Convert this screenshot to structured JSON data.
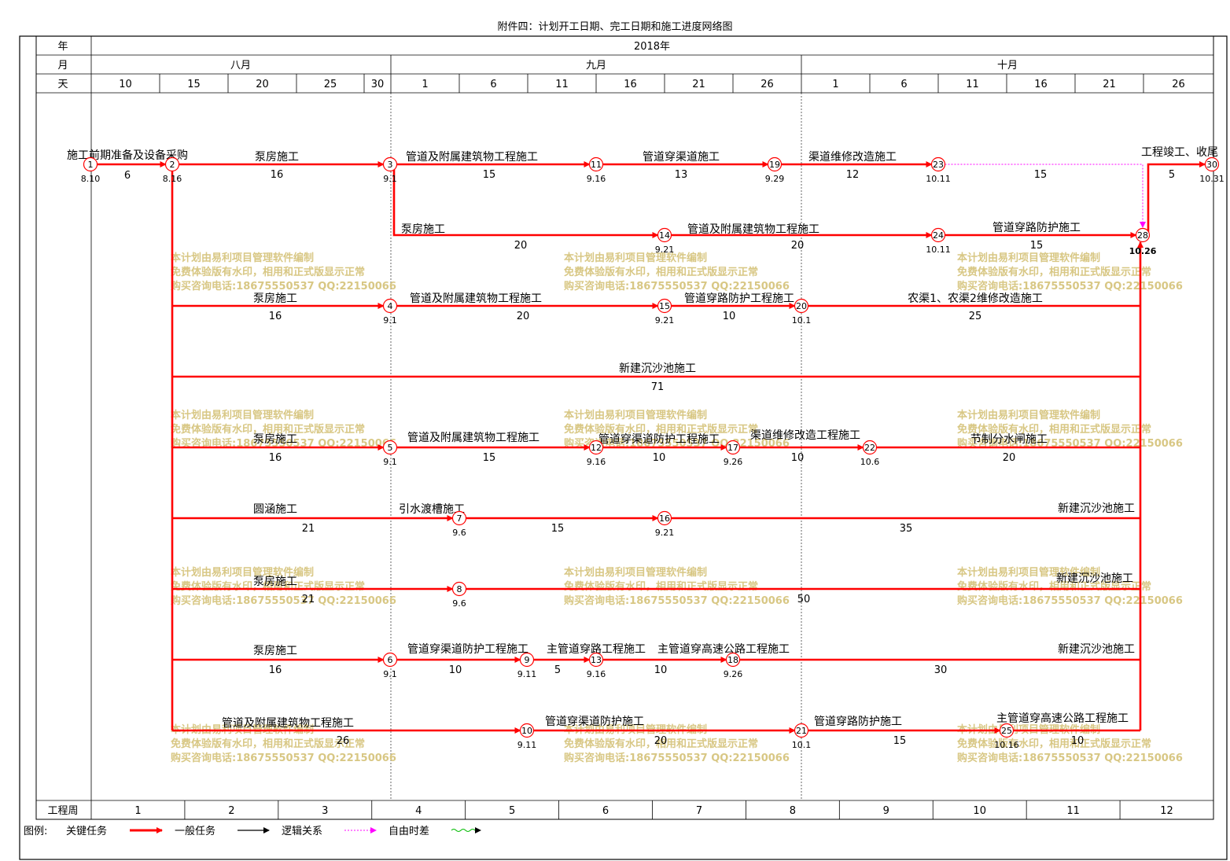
{
  "title": "附件四：计划开工日期、完工日期和施工进度网络图",
  "header": {
    "year_label": "年",
    "month_label": "月",
    "day_label": "天",
    "year_value": "2018年",
    "months": [
      "八月",
      "九月",
      "十月"
    ],
    "days": [
      "10",
      "15",
      "20",
      "25",
      "30",
      "1",
      "6",
      "11",
      "16",
      "21",
      "26",
      "1",
      "6",
      "11",
      "16",
      "21",
      "26"
    ]
  },
  "footer": {
    "week_label": "工程周",
    "weeks": [
      "1",
      "2",
      "3",
      "4",
      "5",
      "6",
      "7",
      "8",
      "9",
      "10",
      "11",
      "12"
    ]
  },
  "legend": {
    "label": "图例:",
    "critical": "关键任务",
    "general": "一般任务",
    "logic": "逻辑关系",
    "float": "自由时差"
  },
  "colors": {
    "critical": "#ff0000",
    "general": "#000000",
    "float": "#ff00ff",
    "float_marker": "#00bb00",
    "watermark": "#d8c784"
  },
  "watermark": [
    "本计划由易利项目管理软件编制",
    "免费体验版有水印，相用和正式版显示正常",
    "购买咨询电话:18675550537 QQ:22150066"
  ],
  "nodes": [
    {
      "id": "1",
      "date": "8.10"
    },
    {
      "id": "2",
      "date": "8.16"
    },
    {
      "id": "3",
      "date": "9.1"
    },
    {
      "id": "4",
      "date": "9.1"
    },
    {
      "id": "5",
      "date": "9.1"
    },
    {
      "id": "6",
      "date": "9.1"
    },
    {
      "id": "7",
      "date": "9.6"
    },
    {
      "id": "8",
      "date": "9.6"
    },
    {
      "id": "9",
      "date": "9.11"
    },
    {
      "id": "10",
      "date": "9.11"
    },
    {
      "id": "11",
      "date": "9.16"
    },
    {
      "id": "12",
      "date": "9.16"
    },
    {
      "id": "13",
      "date": "9.16"
    },
    {
      "id": "14",
      "date": "9.21"
    },
    {
      "id": "15",
      "date": "9.21"
    },
    {
      "id": "16",
      "date": "9.21"
    },
    {
      "id": "17",
      "date": "9.26"
    },
    {
      "id": "18",
      "date": "9.26"
    },
    {
      "id": "19",
      "date": "9.29"
    },
    {
      "id": "20",
      "date": "10.1"
    },
    {
      "id": "21",
      "date": "10.1"
    },
    {
      "id": "22",
      "date": "10.6"
    },
    {
      "id": "23",
      "date": "10.11"
    },
    {
      "id": "24",
      "date": "10.11"
    },
    {
      "id": "25",
      "date": "10.16"
    },
    {
      "id": "28",
      "date": "10.26"
    },
    {
      "id": "30",
      "date": "10.31"
    }
  ],
  "tasks": [
    {
      "name": "施工前期准备及设备采购",
      "duration": "6"
    },
    {
      "name": "泵房施工",
      "duration": "16"
    },
    {
      "name": "管道及附属建筑物工程施工",
      "duration": "15"
    },
    {
      "name": "管道穿渠道施工",
      "duration": "13"
    },
    {
      "name": "渠道维修改造施工",
      "duration": "12"
    },
    {
      "name": "",
      "duration": "15"
    },
    {
      "name": "工程竣工、收尾",
      "duration": "5"
    },
    {
      "name": "泵房施工",
      "duration": "20"
    },
    {
      "name": "管道及附属建筑物工程施工",
      "duration": "20"
    },
    {
      "name": "管道穿路防护施工",
      "duration": "15"
    },
    {
      "name": "泵房施工",
      "duration": "16"
    },
    {
      "name": "管道及附属建筑物工程施工",
      "duration": "20"
    },
    {
      "name": "管道穿路防护工程施工",
      "duration": "10"
    },
    {
      "name": "农渠1、农渠2维修改造施工",
      "duration": "25"
    },
    {
      "name": "新建沉沙池施工",
      "duration": "71"
    },
    {
      "name": "泵房施工",
      "duration": "16"
    },
    {
      "name": "管道及附属建筑物工程施工",
      "duration": "15"
    },
    {
      "name": "管道穿渠道防护工程施工",
      "duration": "10"
    },
    {
      "name": "渠道维修改造工程施工",
      "duration": "10"
    },
    {
      "name": "节制分水闸施工",
      "duration": "20"
    },
    {
      "name": "圆涵施工",
      "duration": "21"
    },
    {
      "name": "引水渡槽施工",
      "duration": "15"
    },
    {
      "name": "新建沉沙池施工",
      "duration": "35"
    },
    {
      "name": "泵房施工",
      "duration": "21"
    },
    {
      "name": "新建沉沙池施工",
      "duration": "50"
    },
    {
      "name": "泵房施工",
      "duration": "16"
    },
    {
      "name": "管道穿渠道防护工程施工",
      "duration": "10"
    },
    {
      "name": "主管道穿路工程施工",
      "duration": "5"
    },
    {
      "name": "主管道穿高速公路工程施工",
      "duration": "10"
    },
    {
      "name": "新建沉沙池施工",
      "duration": "30"
    },
    {
      "name": "管道及附属建筑物工程施工",
      "duration": "26"
    },
    {
      "name": "管道穿渠道防护施工",
      "duration": "20"
    },
    {
      "name": "管道穿路防护施工",
      "duration": "15"
    },
    {
      "name": "主管道穿高速公路工程施工",
      "duration": "10"
    }
  ]
}
